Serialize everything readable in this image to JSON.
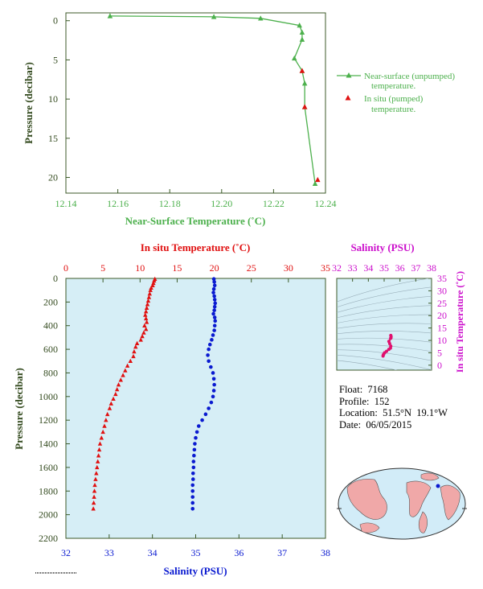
{
  "colors": {
    "green": "#4cb04c",
    "red": "#e01010",
    "blue": "#0a1ad0",
    "magenta": "#cc10cc",
    "axis_label_dark": "#334a1e",
    "plot_bg": "#d6eef6",
    "land": "#f0a8a8",
    "ocean": "#d2ecf8"
  },
  "float_info": {
    "float_label": "Float:",
    "float_value": "7168",
    "profile_label": "Profile:",
    "profile_value": "152",
    "location_label": "Location:",
    "location_value": "51.5°N  19.1°W",
    "date_label": "Date:",
    "date_value": "06/05/2015"
  },
  "chart_data": [
    {
      "id": "near_surface",
      "type": "line",
      "xlabel": "Near-Surface Temperature (˚C)",
      "ylabel": "Pressure (decibar)",
      "xlim": [
        12.14,
        12.24
      ],
      "ylim": [
        22,
        -1
      ],
      "xticks": [
        "12.14",
        "12.16",
        "12.18",
        "12.20",
        "12.22",
        "12.24"
      ],
      "yticks": [
        "0",
        "5",
        "10",
        "15",
        "20"
      ],
      "legend": [
        "Near-surface (unpumped) temperature.",
        "In situ (pumped) temperature."
      ],
      "legend_position": "right",
      "series": [
        {
          "name": "Near-surface (unpumped) temperature.",
          "style": "line-triangle",
          "color": "#4cb04c",
          "x": [
            12.157,
            12.197,
            12.215,
            12.23,
            12.231,
            12.231,
            12.228,
            12.231,
            12.232,
            12.232,
            12.236
          ],
          "y": [
            -0.6,
            -0.5,
            -0.3,
            0.6,
            1.5,
            2.4,
            4.8,
            6.4,
            8.0,
            11.0,
            20.8
          ]
        },
        {
          "name": "In situ (pumped) temperature.",
          "style": "triangle",
          "color": "#e01010",
          "x": [
            12.231,
            12.232,
            12.237
          ],
          "y": [
            6.4,
            11.0,
            20.3
          ]
        }
      ]
    },
    {
      "id": "profile",
      "type": "scatter",
      "ylabel": "Pressure (decibar)",
      "ylim": [
        2200,
        0
      ],
      "yticks": [
        "0",
        "200",
        "400",
        "600",
        "800",
        "1000",
        "1200",
        "1400",
        "1600",
        "1800",
        "2000",
        "2200"
      ],
      "top_axis": {
        "label": "In situ Temperature (˚C)",
        "lim": [
          0,
          35
        ],
        "ticks": [
          "0",
          "5",
          "10",
          "15",
          "20",
          "25",
          "30",
          "35"
        ]
      },
      "bottom_axis": {
        "label": "Salinity (PSU)",
        "lim": [
          32,
          38
        ],
        "ticks": [
          "32",
          "33",
          "34",
          "35",
          "36",
          "37",
          "38"
        ]
      },
      "series": [
        {
          "name": "In situ Temperature (˚C)",
          "axis": "top",
          "style": "triangle",
          "color": "#e01010",
          "y": [
            5,
            20,
            40,
            60,
            80,
            100,
            130,
            160,
            190,
            220,
            250,
            280,
            310,
            340,
            370,
            400,
            430,
            460,
            490,
            520,
            550,
            580,
            620,
            660,
            700,
            740,
            780,
            820,
            860,
            900,
            940,
            980,
            1020,
            1060,
            1100,
            1150,
            1200,
            1250,
            1300,
            1350,
            1400,
            1450,
            1500,
            1550,
            1600,
            1650,
            1700,
            1750,
            1800,
            1850,
            1900,
            1950
          ],
          "x": [
            12.0,
            11.9,
            11.8,
            11.7,
            11.5,
            11.4,
            11.3,
            11.2,
            11.1,
            11.0,
            10.9,
            10.8,
            10.7,
            10.8,
            10.9,
            10.6,
            10.8,
            10.5,
            10.3,
            10.1,
            9.6,
            9.4,
            9.2,
            9.1,
            8.7,
            8.3,
            8.0,
            7.7,
            7.4,
            7.1,
            6.9,
            6.7,
            6.4,
            6.1,
            5.9,
            5.6,
            5.4,
            5.2,
            5.0,
            4.8,
            4.6,
            4.5,
            4.4,
            4.3,
            4.2,
            4.1,
            4.0,
            3.9,
            3.85,
            3.8,
            3.75,
            3.7
          ]
        },
        {
          "name": "Salinity (PSU)",
          "axis": "bottom",
          "style": "dot",
          "color": "#0a1ad0",
          "y": [
            5,
            30,
            60,
            90,
            120,
            150,
            180,
            210,
            240,
            270,
            300,
            330,
            360,
            400,
            440,
            480,
            520,
            560,
            600,
            650,
            700,
            750,
            800,
            850,
            900,
            950,
            1000,
            1050,
            1100,
            1150,
            1200,
            1250,
            1300,
            1350,
            1400,
            1450,
            1500,
            1550,
            1600,
            1650,
            1700,
            1750,
            1800,
            1850,
            1900,
            1950
          ],
          "x": [
            35.42,
            35.43,
            35.44,
            35.42,
            35.41,
            35.43,
            35.44,
            35.45,
            35.44,
            35.43,
            35.41,
            35.44,
            35.45,
            35.44,
            35.43,
            35.4,
            35.37,
            35.33,
            35.3,
            35.28,
            35.3,
            35.35,
            35.4,
            35.42,
            35.43,
            35.42,
            35.4,
            35.36,
            35.3,
            35.23,
            35.15,
            35.07,
            35.03,
            35.0,
            34.98,
            34.97,
            34.96,
            34.95,
            34.95,
            34.94,
            34.94,
            34.93,
            34.93,
            34.93,
            34.93,
            34.93
          ]
        }
      ]
    },
    {
      "id": "ts_diagram",
      "type": "scatter",
      "top_axis": {
        "label": "Salinity (PSU)",
        "lim": [
          32,
          38
        ],
        "ticks": [
          "32",
          "33",
          "34",
          "35",
          "36",
          "37",
          "38"
        ]
      },
      "right_axis": {
        "label": "In situ Temperature (˚C)",
        "lim": [
          -2,
          35
        ],
        "ticks": [
          "0",
          "5",
          "10",
          "15",
          "20",
          "25",
          "30",
          "35"
        ]
      },
      "series": [
        {
          "name": "T-S",
          "style": "dot",
          "color": "#e0106e",
          "x": [
            35.42,
            35.44,
            35.43,
            35.41,
            35.3,
            35.35,
            35.42,
            35.4,
            35.3,
            35.15,
            35.03,
            34.97,
            34.94,
            34.93
          ],
          "y": [
            12.0,
            11.5,
            11.0,
            10.8,
            9.6,
            8.7,
            7.7,
            6.9,
            6.4,
            5.6,
            5.0,
            4.4,
            4.0,
            3.7
          ]
        }
      ]
    }
  ]
}
